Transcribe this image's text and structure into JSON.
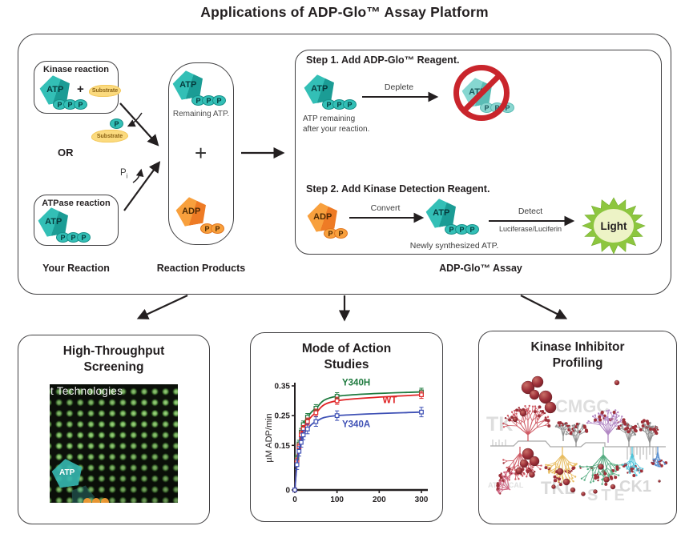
{
  "title": "Applications of ADP-Glo™ Assay Platform",
  "labels": {
    "atp": "ATP",
    "adp": "ADP",
    "p": "P",
    "pi_sub": "i",
    "plus": "+",
    "substrate": "Substrate",
    "or": "OR"
  },
  "your_reaction": {
    "kinase_title": "Kinase reaction",
    "atpase_title": "ATPase reaction",
    "section_label": "Your Reaction"
  },
  "reaction_products": {
    "remaining_atp": "Remaining ATP.",
    "section_label": "Reaction Products"
  },
  "assay": {
    "step1_title": "Step 1. Add ADP-Glo™ Reagent.",
    "step1_caption_line1": "ATP remaining",
    "step1_caption_line2": "after your reaction.",
    "deplete_label": "Deplete",
    "step2_title": "Step 2. Add Kinase Detection Reagent.",
    "convert_label": "Convert",
    "newly_synthesized": "Newly synthesized ATP.",
    "detect_label": "Detect",
    "luciferase_label": "Luciferase/Luciferin",
    "light_label": "Light",
    "section_label": "ADP-Glo™ Assay"
  },
  "panels": {
    "hts": {
      "title_line1": "High-Throughput",
      "title_line2": "Screening",
      "overlay_text": "t Technologies",
      "atp_watermark": "ATP"
    },
    "moa": {
      "title_line1": "Mode of Action",
      "title_line2": "Studies"
    },
    "kip": {
      "title_line1": "Kinase Inhibitor",
      "title_line2": "Profiling",
      "watermarks": [
        "TK",
        "CMGC",
        "TKL",
        "ATYPICAL",
        "STE",
        "CK1"
      ]
    }
  },
  "colors": {
    "teal": "#33bfb6",
    "teal_dark": "#1b9c95",
    "orange": "#f8a03d",
    "orange_dark": "#ee7b25",
    "substrate_yellow": "#fbda7e",
    "prohibit_red": "#c9252c",
    "light_green": "#8dc63f",
    "light_center": "#edf3c6",
    "series_green": "#1e7a3e",
    "series_red": "#e02426",
    "series_blue": "#3f51b5"
  },
  "chart_data": {
    "type": "line",
    "title": "Mode of Action Studies",
    "xlabel": "",
    "ylabel": "µM ADP/min",
    "xlim": [
      0,
      300
    ],
    "ylim": [
      0,
      0.35
    ],
    "xticks": [
      0,
      100,
      200,
      300
    ],
    "yticks": [
      0,
      0.15,
      0.25,
      0.35
    ],
    "grid": false,
    "legend_position": "inline",
    "x": [
      0,
      5,
      10,
      15,
      20,
      30,
      50,
      100,
      300
    ],
    "series": [
      {
        "name": "Y340H",
        "color": "#1e7a3e",
        "error": 0.012,
        "label_x": 112,
        "label_y": 0.352,
        "values": [
          0,
          0.105,
          0.155,
          0.195,
          0.22,
          0.245,
          0.275,
          0.315,
          0.33
        ]
      },
      {
        "name": "WT",
        "color": "#e02426",
        "error": 0.012,
        "label_x": 208,
        "label_y": 0.292,
        "values": [
          0,
          0.095,
          0.145,
          0.185,
          0.205,
          0.23,
          0.26,
          0.3,
          0.32
        ]
      },
      {
        "name": "Y340A",
        "color": "#3f51b5",
        "error": 0.016,
        "label_x": 112,
        "label_y": 0.212,
        "values": [
          0,
          0.085,
          0.13,
          0.16,
          0.185,
          0.205,
          0.23,
          0.25,
          0.262
        ]
      }
    ]
  }
}
